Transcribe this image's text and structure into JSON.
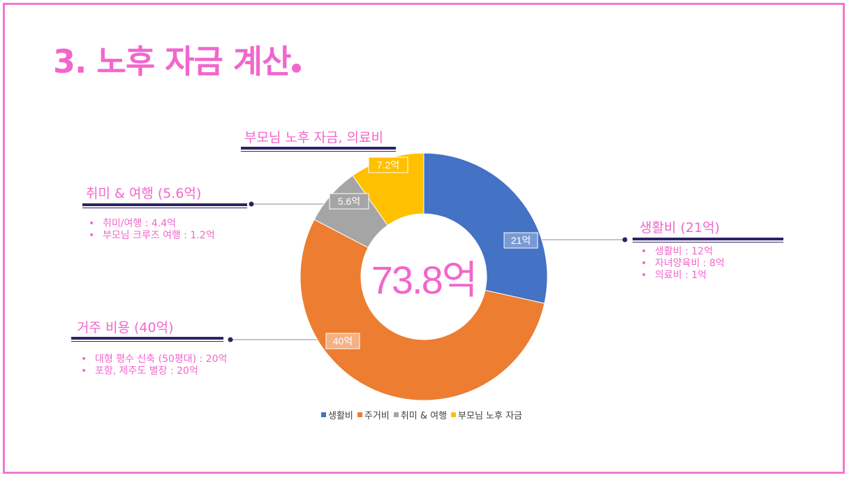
{
  "page": {
    "title": "3. 노후 자금 계산",
    "center_total": "73.8억"
  },
  "groups": {
    "parents": {
      "heading": "부모님 노후 자금, 의료비"
    },
    "hobby": {
      "heading": "취미 & 여행 (5.6억)",
      "items": [
        "취미/여행 : 4.4억",
        "부모님 크루즈 여행 : 1.2억"
      ]
    },
    "living": {
      "heading": "생활비 (21억)",
      "items": [
        "생활비 : 12억",
        "자녀양육비 : 8억",
        "의료비 : 1억"
      ]
    },
    "housing": {
      "heading": "거주 비용 (40억)",
      "items": [
        "대형 평수 신축 (50평대) : 20억",
        "포항, 제주도 별장 : 20억"
      ]
    }
  },
  "chart_data": {
    "type": "pie",
    "donut": true,
    "categories": [
      "생활비",
      "주거비",
      "취미 & 여행",
      "부모님 노후 자금"
    ],
    "values": [
      21,
      40,
      5.6,
      7.2
    ],
    "data_labels": [
      "21억",
      "40억",
      "5.6억",
      "7.2억"
    ],
    "colors": [
      "#4472c4",
      "#ed7d31",
      "#a5a5a5",
      "#ffc000"
    ],
    "label_colors": [
      "#7a9ad4",
      "#f4b183",
      "#a5a5a5",
      "#ffc000"
    ],
    "legend": "bottom",
    "start_angle_deg": 0,
    "direction": "clockwise"
  }
}
